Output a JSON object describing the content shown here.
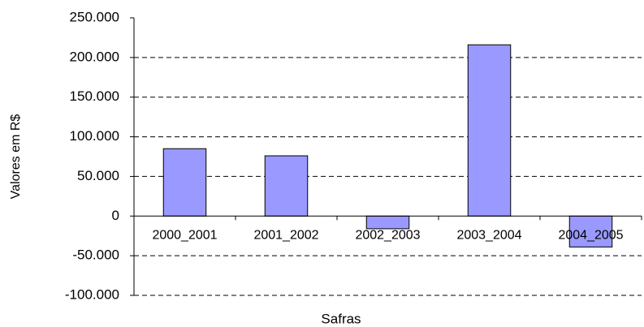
{
  "chart_data": {
    "type": "bar",
    "xlabel": "Safras",
    "ylabel": "Valores em R$",
    "categories": [
      "2000_2001",
      "2001_2002",
      "2002_2003",
      "2003_2004",
      "2004_2005"
    ],
    "values": [
      85000,
      76000,
      -16000,
      216000,
      -39000
    ],
    "color": "#9999ff",
    "ylim": [
      -100000,
      250000
    ],
    "yticks": [
      {
        "value": 250000,
        "label": "250.000"
      },
      {
        "value": 200000,
        "label": "200.000"
      },
      {
        "value": 150000,
        "label": "150.000"
      },
      {
        "value": 100000,
        "label": "100.000"
      },
      {
        "value": 50000,
        "label": "50.000"
      },
      0,
      {
        "value": -50000,
        "label": "-50.000"
      },
      {
        "value": -100000,
        "label": "-100.000"
      }
    ],
    "grid": true
  }
}
